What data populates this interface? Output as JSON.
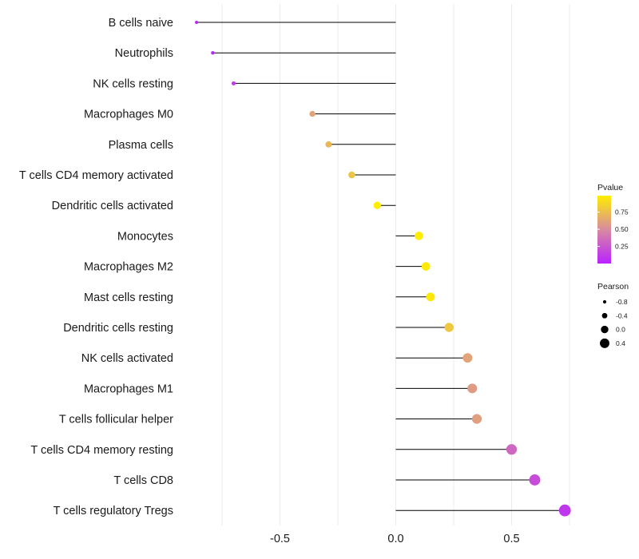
{
  "chart_data": {
    "type": "lollipop",
    "xlim": [
      -0.9,
      0.79
    ],
    "x_ticks": [
      -0.5,
      0.0,
      0.5
    ],
    "x_tick_labels": [
      "-0.5",
      "0.0",
      "0.5"
    ],
    "grid": true,
    "categories": [
      "B cells naive",
      "Neutrophils",
      "NK cells resting",
      "Macrophages M0",
      "Plasma cells",
      "T cells CD4 memory activated",
      "Dendritic cells activated",
      "Monocytes",
      "Macrophages M2",
      "Mast cells resting",
      "Dendritic cells resting",
      "NK cells activated",
      "Macrophages M1",
      "T cells follicular helper",
      "T cells CD4 memory resting",
      "T cells CD8",
      "T cells regulatory  Tregs"
    ],
    "pearson": [
      -0.86,
      -0.79,
      -0.7,
      -0.36,
      -0.29,
      -0.19,
      -0.08,
      0.1,
      0.13,
      0.15,
      0.23,
      0.31,
      0.33,
      0.35,
      0.5,
      0.6,
      0.73
    ],
    "pvalue": [
      0.01,
      0.03,
      0.12,
      0.62,
      0.72,
      0.78,
      0.99,
      0.98,
      0.97,
      0.96,
      0.8,
      0.62,
      0.58,
      0.6,
      0.33,
      0.2,
      0.1
    ],
    "color_legend": {
      "title": "Pvalue",
      "ticks": [
        0.25,
        0.5,
        0.75
      ],
      "tick_labels": [
        "0.25",
        "0.50",
        "0.75"
      ],
      "range": [
        0.0,
        0.99
      ],
      "low_color": "#b922ff",
      "mid_color": "#d88aa0",
      "high_color": "#ffee00"
    },
    "size_legend": {
      "title": "Pearson",
      "values": [
        -0.8,
        -0.4,
        0.0,
        0.4
      ],
      "labels": [
        "-0.8",
        "-0.4",
        "0.0",
        "0.4"
      ]
    }
  }
}
